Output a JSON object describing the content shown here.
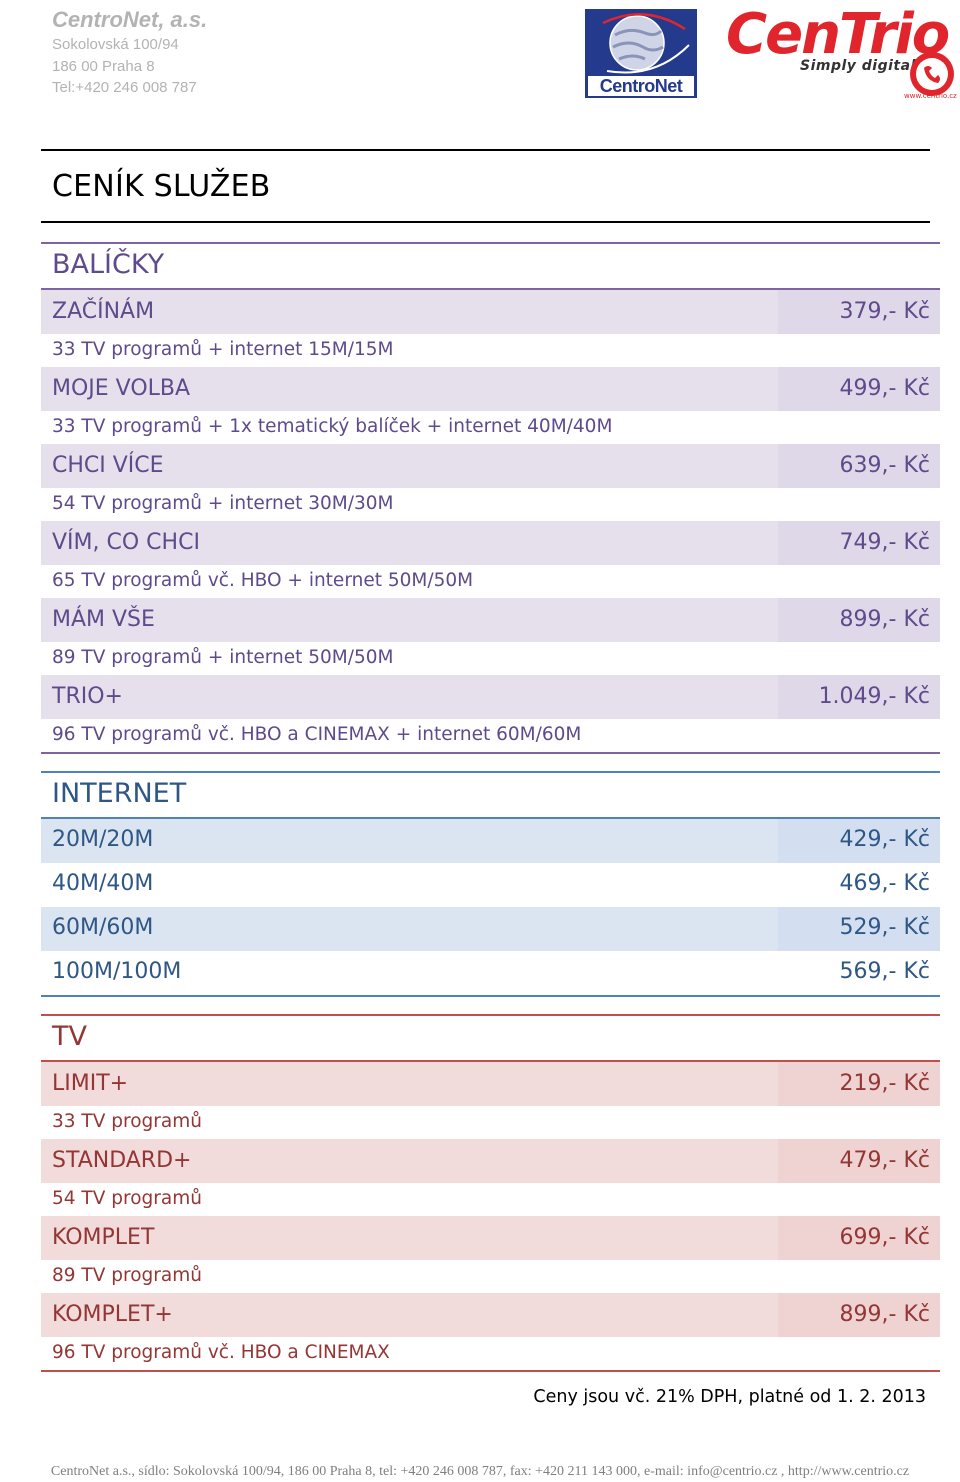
{
  "company": {
    "name": "CentroNet, a.s.",
    "street": "Sokolovská 100/94",
    "city": "186 00 Praha 8",
    "phone": "Tel:+420 246 008 787"
  },
  "logos": {
    "centronet_text_a": "Centro",
    "centronet_text_b": "Net",
    "centrio_word": "CenTrio",
    "centrio_tagline": "Simply digital",
    "centrio_site": "www.centrio.cz"
  },
  "colors": {
    "packages_accent": "#5f4a8b",
    "internet_accent": "#2e5786",
    "tv_accent": "#943634"
  },
  "title": "CENÍK SLUŽEB",
  "packages": {
    "heading": "BALÍČKY",
    "items": [
      {
        "name": "ZAČÍNÁM",
        "desc": "33 TV programů + internet 15M/15M",
        "price": "379,- Kč"
      },
      {
        "name": "MOJE VOLBA",
        "desc": "33 TV programů + 1x tematický balíček + internet 40M/40M",
        "price": "499,- Kč"
      },
      {
        "name": "CHCI VÍCE",
        "desc": "54 TV programů + internet 30M/30M",
        "price": "639,- Kč"
      },
      {
        "name": "VÍM, CO CHCI",
        "desc": "65 TV programů vč. HBO + internet 50M/50M",
        "price": "749,- Kč"
      },
      {
        "name": "MÁM VŠE",
        "desc": "89 TV programů + internet 50M/50M",
        "price": "899,- Kč"
      },
      {
        "name": "TRIO+",
        "desc": "96 TV programů vč. HBO a CINEMAX + internet 60M/60M",
        "price": "1.049,- Kč"
      }
    ]
  },
  "internet": {
    "heading": "INTERNET",
    "items": [
      {
        "name": "20M/20M",
        "price": "429,- Kč"
      },
      {
        "name": "40M/40M",
        "price": "469,- Kč"
      },
      {
        "name": "60M/60M",
        "price": "529,- Kč"
      },
      {
        "name": "100M/100M",
        "price": "569,- Kč"
      }
    ]
  },
  "tv": {
    "heading": "TV",
    "items": [
      {
        "name": "LIMIT+",
        "desc": "33 TV programů",
        "price": "219,- Kč"
      },
      {
        "name": "STANDARD+",
        "desc": "54 TV programů",
        "price": "479,- Kč"
      },
      {
        "name": "KOMPLET",
        "desc": "89 TV programů",
        "price": "699,- Kč"
      },
      {
        "name": "KOMPLET+",
        "desc": "96 TV programů vč. HBO a CINEMAX",
        "price": "899,- Kč"
      }
    ]
  },
  "note": "Ceny jsou vč. 21% DPH, platné od 1. 2. 2013",
  "footer": "CentroNet a.s., sídlo: Sokolovská 100/94, 186 00 Praha 8, tel: +420 246 008 787, fax: +420 211 143 000, e-mail: info@centrio.cz , http://www.centrio.cz"
}
